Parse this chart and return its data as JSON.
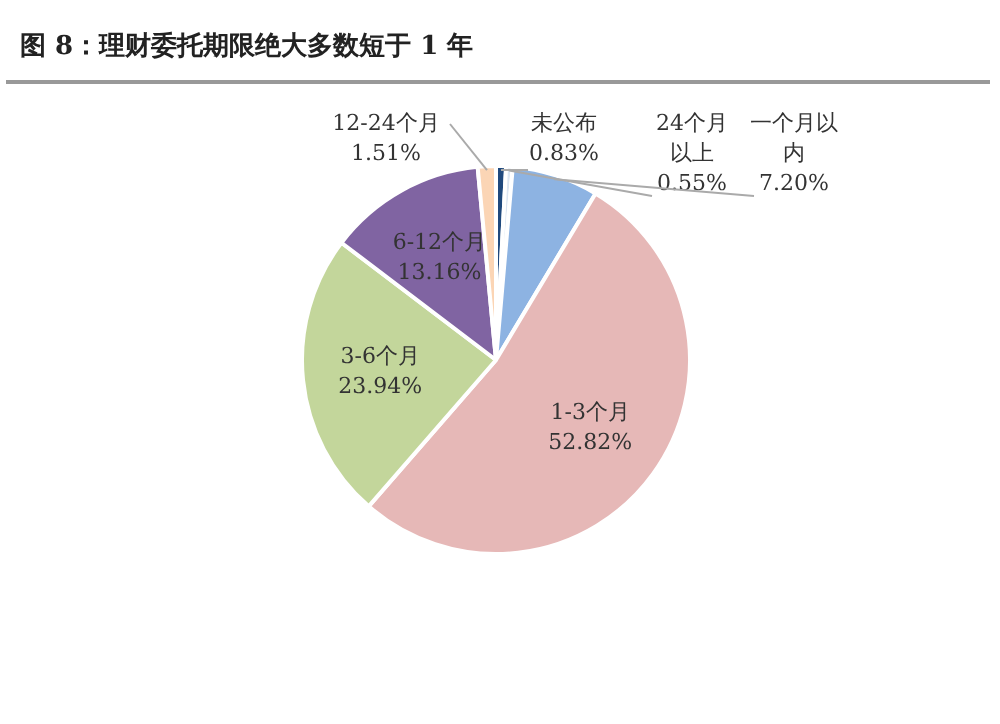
{
  "chart_data": {
    "type": "pie",
    "title": "图 8：理财委托期限绝大多数短于 1 年",
    "categories": [
      "未公布",
      "24个月以上",
      "一个月以内",
      "1-3个月",
      "3-6个月",
      "6-12个月",
      "12-24个月"
    ],
    "values": [
      0.83,
      0.55,
      7.2,
      52.82,
      23.94,
      13.16,
      1.51
    ],
    "value_labels": [
      "0.83%",
      "0.55%",
      "7.20%",
      "52.82%",
      "23.94%",
      "13.16%",
      "1.51%"
    ],
    "colors": [
      "#1f497d",
      "#dbe5f1",
      "#8db3e2",
      "#e6b8b7",
      "#c3d69b",
      "#8064a2",
      "#fbd5b5"
    ],
    "legend": false
  }
}
